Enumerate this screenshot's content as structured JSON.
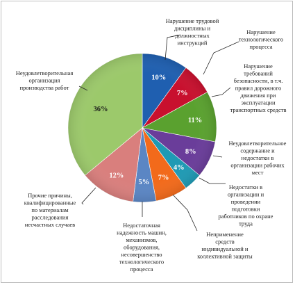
{
  "chart_data": {
    "type": "pie",
    "title": "",
    "slices": [
      {
        "label": "Нарушение трудовой дисциплины и должностных инструкций",
        "value": 10,
        "value_label": "10%",
        "color": "#1f5fb0"
      },
      {
        "label": "Нарушение технологического процесса",
        "value": 7,
        "value_label": "7%",
        "color": "#c8102e"
      },
      {
        "label": "Нарушение требований безопасности, в т.ч. правил дорожного движения при эксплуатации транспортных средств",
        "value": 11,
        "value_label": "11%",
        "color": "#5aa12f"
      },
      {
        "label": "Неудовлетворительное содержание и недостатки в организации рабочих мест",
        "value": 8,
        "value_label": "8%",
        "color": "#6a3d9a"
      },
      {
        "label": "Недостатки в организации и проведении подготовки работников по охране труда",
        "value": 4,
        "value_label": "4%",
        "color": "#1f9ab4"
      },
      {
        "label": "Неприменение средств индивидуальной и коллективной защиты",
        "value": 7,
        "value_label": "7%",
        "color": "#f26a1b"
      },
      {
        "label": "Недостаточная надежность машин, механизмов, оборудования, несовершенство технологического процесса",
        "value": 5,
        "value_label": "5%",
        "color": "#5b86c4"
      },
      {
        "label": "Прочие причины, квалифицированные по материалам расследования несчастных случаев",
        "value": 12,
        "value_label": "12%",
        "color": "#d97f7d"
      },
      {
        "label": "Неудовлетворительная организация производства работ",
        "value": 36,
        "value_label": "36%",
        "color": "#9cc96b"
      }
    ],
    "legend": "none"
  }
}
